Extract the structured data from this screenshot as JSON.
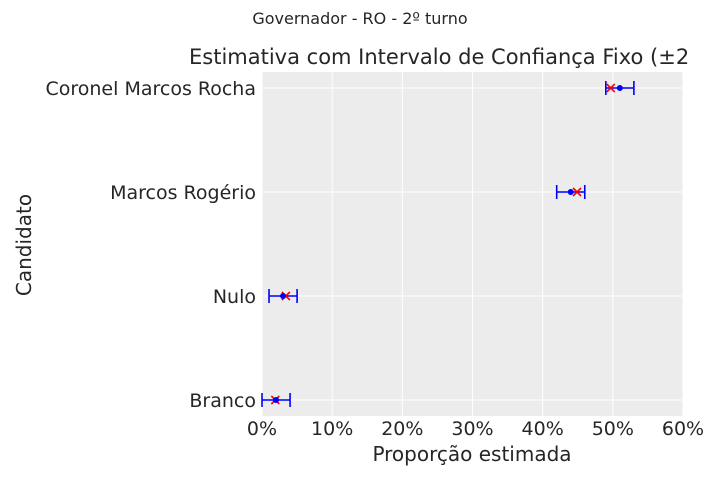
{
  "suptitle": "Governador - RO - 2º turno",
  "chart_data": {
    "type": "errorbar",
    "title": "Estimativa com Intervalo de Confiança Fixo (±2",
    "xlabel": "Proporção estimada",
    "ylabel": "Candidato",
    "xlim": [
      0,
      0.6
    ],
    "xticks": [
      0,
      0.1,
      0.2,
      0.3,
      0.4,
      0.5,
      0.6
    ],
    "xtick_labels": [
      "0%",
      "10%",
      "20%",
      "30%",
      "40%",
      "50%",
      "60%"
    ],
    "categories": [
      "Coronel Marcos Rocha",
      "Marcos Rogério",
      "Nulo",
      "Branco"
    ],
    "estimates": [
      0.51,
      0.44,
      0.03,
      0.02
    ],
    "lower": [
      0.49,
      0.42,
      0.01,
      0.0
    ],
    "upper": [
      0.53,
      0.46,
      0.05,
      0.04
    ],
    "actual": [
      0.497,
      0.449,
      0.034,
      0.019
    ],
    "grid": true,
    "colors": {
      "background": "#ececec",
      "grid": "#ffffff",
      "estimate": "#0000ff",
      "errorbar": "#0000ff",
      "actual": "#ff0000",
      "text": "#262626"
    }
  }
}
